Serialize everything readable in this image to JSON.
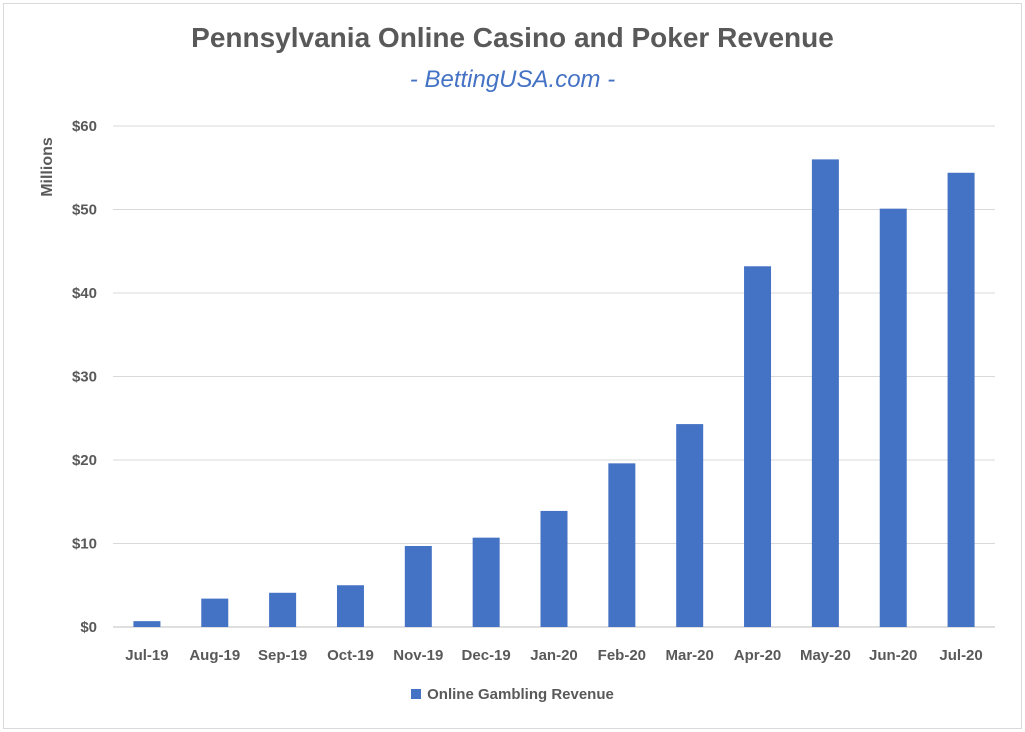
{
  "chart_data": {
    "type": "bar",
    "title": "Pennsylvania Online Casino and Poker Revenue",
    "subtitle": "- BettingUSA.com -",
    "ylabel": "Millions",
    "xlabel": "",
    "ylim": [
      0,
      60
    ],
    "yticks": [
      "$0",
      "$10",
      "$20",
      "$30",
      "$40",
      "$50",
      "$60"
    ],
    "ytick_values": [
      0,
      10,
      20,
      30,
      40,
      50,
      60
    ],
    "grid": true,
    "legend_position": "bottom",
    "categories": [
      "Jul-19",
      "Aug-19",
      "Sep-19",
      "Oct-19",
      "Nov-19",
      "Dec-19",
      "Jan-20",
      "Feb-20",
      "Mar-20",
      "Apr-20",
      "May-20",
      "Jun-20",
      "Jul-20"
    ],
    "series": [
      {
        "name": "Online Gambling Revenue",
        "color": "#4472c4",
        "values": [
          0.7,
          3.4,
          4.1,
          5.0,
          9.7,
          10.7,
          13.9,
          19.6,
          24.3,
          43.2,
          56.0,
          50.1,
          54.4
        ]
      }
    ]
  }
}
